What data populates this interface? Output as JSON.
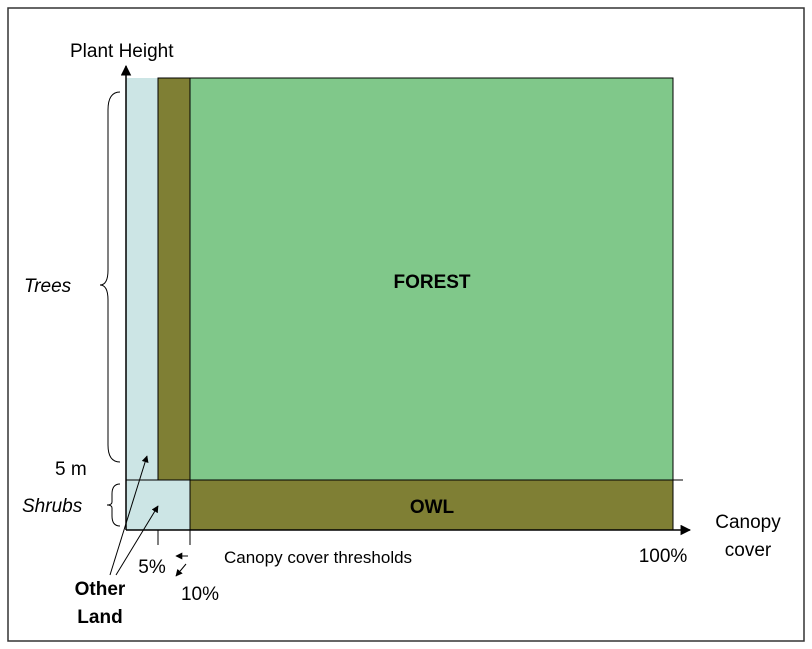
{
  "y_axis": {
    "label": "Plant Height",
    "threshold": "5 m",
    "bands": {
      "upper": "Trees",
      "lower": "Shrubs"
    }
  },
  "x_axis": {
    "label": [
      "Canopy",
      "cover"
    ],
    "end": "100%",
    "thresholds": {
      "low": "5%",
      "high": "10%",
      "caption": "Canopy cover thresholds"
    }
  },
  "regions": {
    "forest": "FOREST",
    "owl": "OWL",
    "other": [
      "Other",
      "Land"
    ]
  }
}
